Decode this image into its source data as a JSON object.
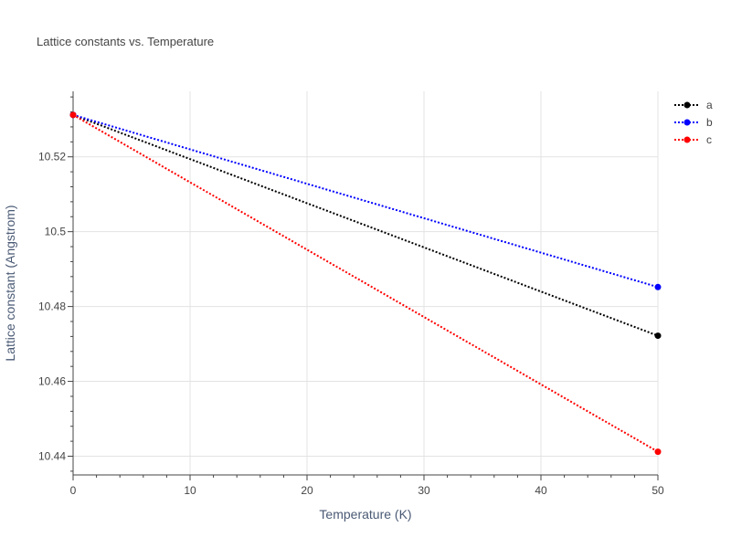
{
  "chart_data": {
    "type": "line",
    "title": "Lattice constants vs. Temperature",
    "xlabel": "Temperature (K)",
    "ylabel": "Lattice constant (Angstrom)",
    "xlim": [
      0,
      50
    ],
    "ylim": [
      10.435,
      10.5375
    ],
    "x_ticks": [
      0,
      10,
      20,
      30,
      40,
      50
    ],
    "x_tick_labels": [
      "0",
      "10",
      "20",
      "30",
      "40",
      "50"
    ],
    "y_ticks": [
      10.44,
      10.46,
      10.48,
      10.5,
      10.52
    ],
    "y_tick_labels": [
      "10.44",
      "10.46",
      "10.48",
      "10.5",
      "10.52"
    ],
    "grid": true,
    "legend_position": "top-right",
    "series": [
      {
        "name": "a",
        "color": "#000000",
        "line_style": "dotted",
        "x": [
          0,
          50
        ],
        "y": [
          10.5312,
          10.4722
        ]
      },
      {
        "name": "b",
        "color": "#0000ff",
        "line_style": "dotted",
        "x": [
          0,
          50
        ],
        "y": [
          10.5312,
          10.4852
        ]
      },
      {
        "name": "c",
        "color": "#ff0000",
        "line_style": "dotted",
        "x": [
          0,
          50
        ],
        "y": [
          10.5312,
          10.4412
        ]
      }
    ]
  }
}
